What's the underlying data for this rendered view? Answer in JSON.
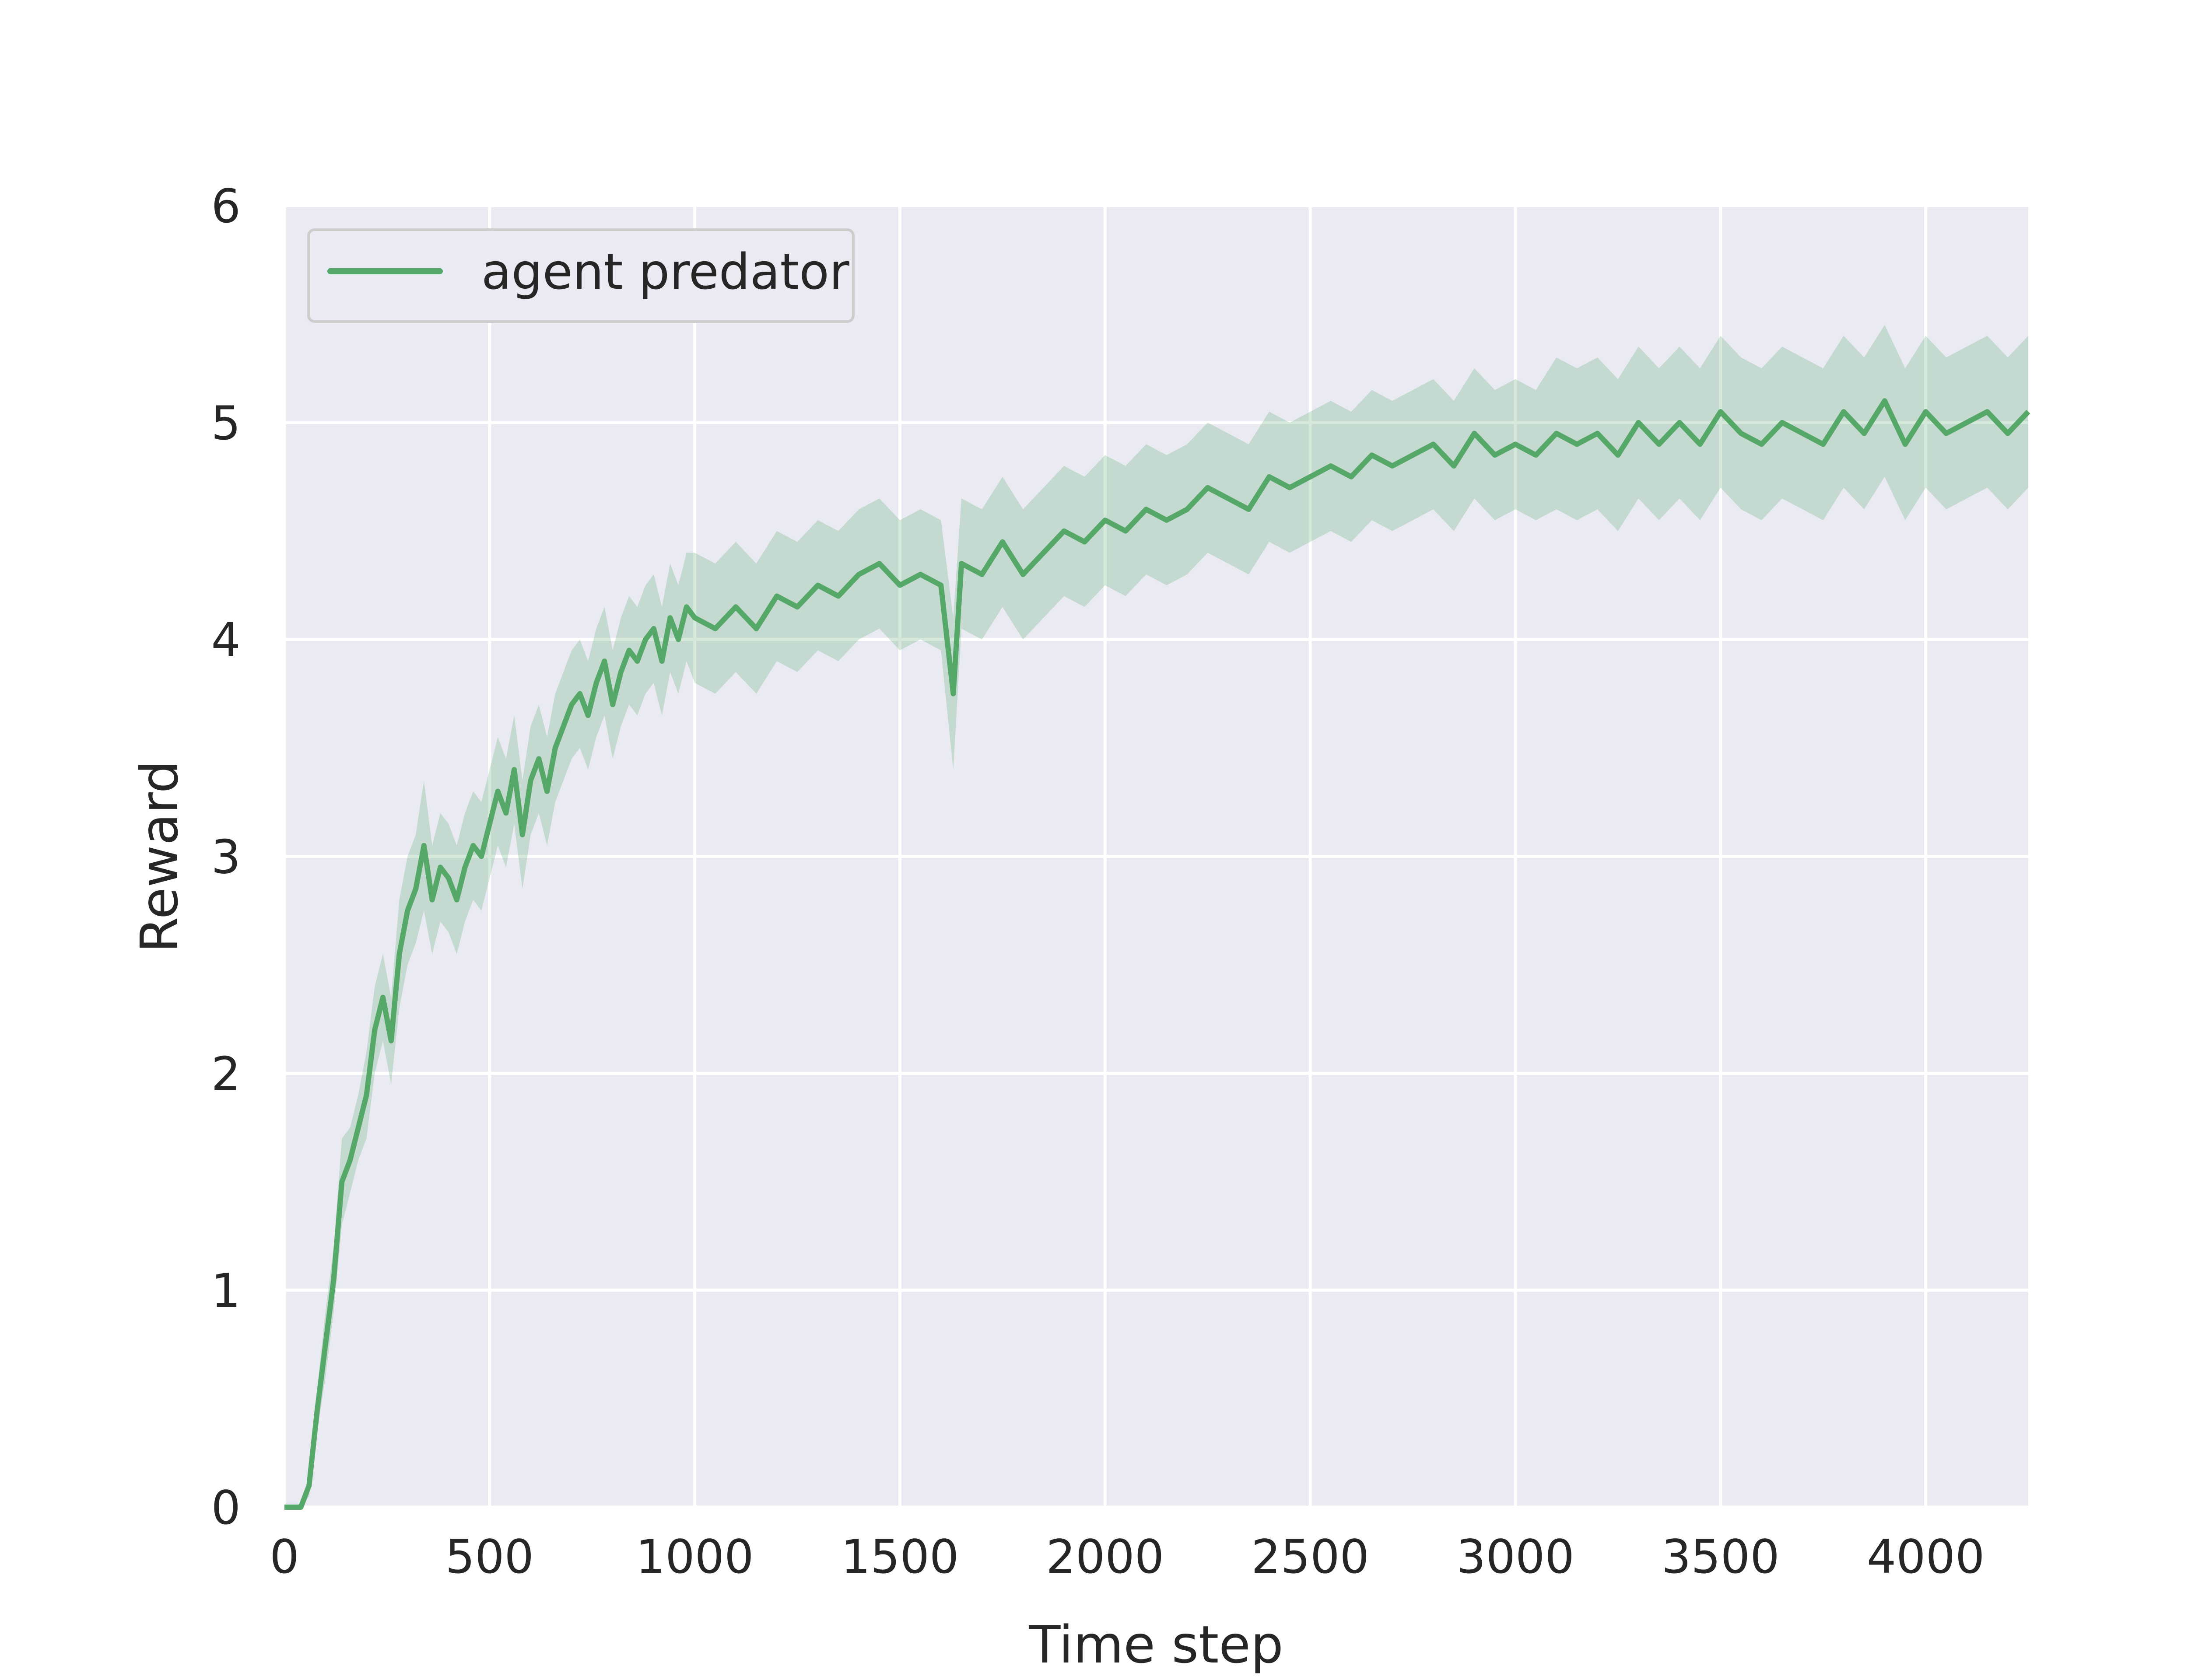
{
  "chart_data": {
    "type": "line",
    "title": "",
    "xlabel": "Time step",
    "ylabel": "Reward",
    "xlim": [
      0,
      4250
    ],
    "ylim": [
      0,
      6
    ],
    "x_ticks": [
      0,
      500,
      1000,
      1500,
      2000,
      2500,
      3000,
      3500,
      4000
    ],
    "x_tick_labels": [
      "0",
      "500",
      "1000",
      "1500",
      "2000",
      "2500",
      "3000",
      "3500",
      "4000"
    ],
    "y_ticks": [
      0,
      1,
      2,
      3,
      4,
      5,
      6
    ],
    "y_tick_labels": [
      "0",
      "1",
      "2",
      "3",
      "4",
      "5",
      "6"
    ],
    "grid": true,
    "legend": {
      "placement": "upper-left",
      "entries": [
        "agent predator"
      ]
    },
    "colors": {
      "series": "#55a868",
      "band": "#55a868",
      "background": "#eaeaf2",
      "grid": "#ffffff",
      "text": "#262626"
    },
    "series": [
      {
        "name": "agent predator",
        "x": [
          0,
          40,
          60,
          80,
          100,
          120,
          140,
          160,
          180,
          200,
          220,
          240,
          260,
          280,
          300,
          320,
          340,
          360,
          380,
          400,
          420,
          440,
          460,
          480,
          500,
          520,
          540,
          560,
          580,
          600,
          620,
          640,
          660,
          680,
          700,
          720,
          740,
          760,
          780,
          800,
          820,
          840,
          860,
          880,
          900,
          920,
          940,
          960,
          980,
          1000,
          1050,
          1100,
          1150,
          1200,
          1250,
          1300,
          1350,
          1400,
          1450,
          1500,
          1550,
          1600,
          1630,
          1650,
          1700,
          1750,
          1800,
          1850,
          1900,
          1950,
          2000,
          2050,
          2100,
          2150,
          2200,
          2250,
          2300,
          2350,
          2400,
          2450,
          2500,
          2550,
          2600,
          2650,
          2700,
          2750,
          2800,
          2850,
          2900,
          2950,
          3000,
          3050,
          3100,
          3150,
          3200,
          3250,
          3300,
          3350,
          3400,
          3450,
          3500,
          3550,
          3600,
          3650,
          3700,
          3750,
          3800,
          3850,
          3900,
          3950,
          4000,
          4050,
          4100,
          4150,
          4200,
          4250
        ],
        "y": [
          0.0,
          0.0,
          0.1,
          0.45,
          0.75,
          1.05,
          1.5,
          1.6,
          1.75,
          1.9,
          2.2,
          2.35,
          2.15,
          2.55,
          2.75,
          2.85,
          3.05,
          2.8,
          2.95,
          2.9,
          2.8,
          2.95,
          3.05,
          3.0,
          3.15,
          3.3,
          3.2,
          3.4,
          3.1,
          3.35,
          3.45,
          3.3,
          3.5,
          3.6,
          3.7,
          3.75,
          3.65,
          3.8,
          3.9,
          3.7,
          3.85,
          3.95,
          3.9,
          4.0,
          4.05,
          3.9,
          4.1,
          4.0,
          4.15,
          4.1,
          4.05,
          4.15,
          4.05,
          4.2,
          4.15,
          4.25,
          4.2,
          4.3,
          4.35,
          4.25,
          4.3,
          4.25,
          3.75,
          4.35,
          4.3,
          4.45,
          4.3,
          4.4,
          4.5,
          4.45,
          4.55,
          4.5,
          4.6,
          4.55,
          4.6,
          4.7,
          4.65,
          4.6,
          4.75,
          4.7,
          4.75,
          4.8,
          4.75,
          4.85,
          4.8,
          4.85,
          4.9,
          4.8,
          4.95,
          4.85,
          4.9,
          4.85,
          4.95,
          4.9,
          4.95,
          4.85,
          5.0,
          4.9,
          5.0,
          4.9,
          5.05,
          4.95,
          4.9,
          5.0,
          4.95,
          4.9,
          5.05,
          4.95,
          5.1,
          4.9,
          5.05,
          4.95,
          5.0,
          5.05,
          4.95,
          5.05
        ],
        "band_low": [
          0.0,
          0.0,
          0.05,
          0.35,
          0.6,
          0.9,
          1.3,
          1.45,
          1.6,
          1.7,
          2.0,
          2.15,
          1.95,
          2.3,
          2.5,
          2.6,
          2.75,
          2.55,
          2.7,
          2.65,
          2.55,
          2.7,
          2.8,
          2.75,
          2.9,
          3.05,
          2.95,
          3.15,
          2.85,
          3.1,
          3.2,
          3.05,
          3.25,
          3.35,
          3.45,
          3.5,
          3.4,
          3.55,
          3.65,
          3.45,
          3.6,
          3.7,
          3.65,
          3.75,
          3.8,
          3.65,
          3.85,
          3.75,
          3.9,
          3.8,
          3.75,
          3.85,
          3.75,
          3.9,
          3.85,
          3.95,
          3.9,
          4.0,
          4.05,
          3.95,
          4.0,
          3.95,
          3.4,
          4.05,
          4.0,
          4.15,
          4.0,
          4.1,
          4.2,
          4.15,
          4.25,
          4.2,
          4.3,
          4.25,
          4.3,
          4.4,
          4.35,
          4.3,
          4.45,
          4.4,
          4.45,
          4.5,
          4.45,
          4.55,
          4.5,
          4.55,
          4.6,
          4.5,
          4.65,
          4.55,
          4.6,
          4.55,
          4.6,
          4.55,
          4.6,
          4.5,
          4.65,
          4.55,
          4.65,
          4.55,
          4.7,
          4.6,
          4.55,
          4.65,
          4.6,
          4.55,
          4.7,
          4.6,
          4.75,
          4.55,
          4.7,
          4.6,
          4.65,
          4.7,
          4.6,
          4.7
        ],
        "band_high": [
          0.0,
          0.0,
          0.15,
          0.55,
          0.9,
          1.2,
          1.7,
          1.75,
          1.9,
          2.1,
          2.4,
          2.55,
          2.35,
          2.8,
          3.0,
          3.1,
          3.35,
          3.05,
          3.2,
          3.15,
          3.05,
          3.2,
          3.3,
          3.25,
          3.4,
          3.55,
          3.45,
          3.65,
          3.35,
          3.6,
          3.7,
          3.55,
          3.75,
          3.85,
          3.95,
          4.0,
          3.9,
          4.05,
          4.15,
          3.95,
          4.1,
          4.2,
          4.15,
          4.25,
          4.3,
          4.15,
          4.35,
          4.25,
          4.4,
          4.4,
          4.35,
          4.45,
          4.35,
          4.5,
          4.45,
          4.55,
          4.5,
          4.6,
          4.65,
          4.55,
          4.6,
          4.55,
          4.1,
          4.65,
          4.6,
          4.75,
          4.6,
          4.7,
          4.8,
          4.75,
          4.85,
          4.8,
          4.9,
          4.85,
          4.9,
          5.0,
          4.95,
          4.9,
          5.05,
          5.0,
          5.05,
          5.1,
          5.05,
          5.15,
          5.1,
          5.15,
          5.2,
          5.1,
          5.25,
          5.15,
          5.2,
          5.15,
          5.3,
          5.25,
          5.3,
          5.2,
          5.35,
          5.25,
          5.35,
          5.25,
          5.4,
          5.3,
          5.25,
          5.35,
          5.3,
          5.25,
          5.4,
          5.3,
          5.45,
          5.25,
          5.4,
          5.3,
          5.35,
          5.4,
          5.3,
          5.4
        ]
      }
    ]
  }
}
